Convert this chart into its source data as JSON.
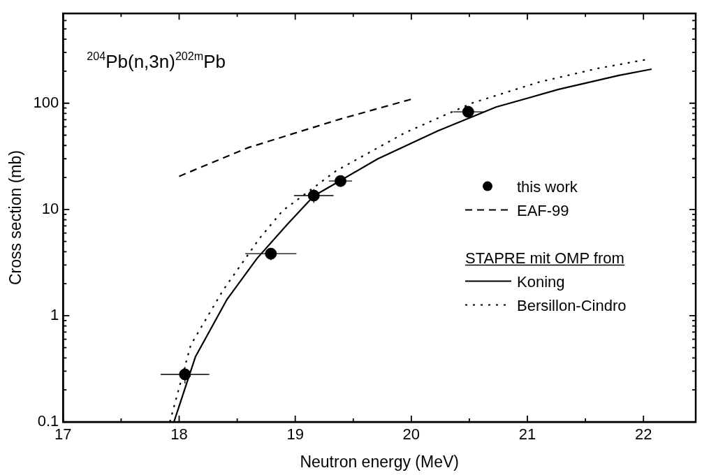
{
  "chart_data": {
    "type": "line",
    "title": "$^{204}$Pb(n,3n)$^{202m}$Pb",
    "xlabel": "Neutron energy (MeV)",
    "ylabel": "Cross section (mb)",
    "legend_title": "STAPRE mit OMP from",
    "log": "y",
    "grid": false,
    "legend": "right",
    "xlim": [
      17,
      22.45
    ],
    "ylim": [
      0.1,
      700
    ],
    "xticks": [
      17,
      {
        "value": 17.5,
        "label": null
      },
      18,
      {
        "value": 18.5,
        "label": null
      },
      19,
      {
        "value": 19.5,
        "label": null
      },
      20,
      {
        "value": 20.5,
        "label": null
      },
      21,
      {
        "value": 21.5,
        "label": null
      },
      22
    ],
    "yticks": [
      {
        "value": 0.1,
        "label": "0.1"
      },
      {
        "value": 0.2,
        "label": null
      },
      {
        "value": 0.3,
        "label": null
      },
      {
        "value": 0.4,
        "label": null
      },
      {
        "value": 0.5,
        "label": null
      },
      {
        "value": 0.6,
        "label": null
      },
      {
        "value": 0.7,
        "label": null
      },
      {
        "value": 0.8,
        "label": null
      },
      {
        "value": 0.9,
        "label": null
      },
      1,
      {
        "value": 2,
        "label": null
      },
      {
        "value": 3,
        "label": null
      },
      {
        "value": 4,
        "label": null
      },
      {
        "value": 5,
        "label": null
      },
      {
        "value": 6,
        "label": null
      },
      {
        "value": 7,
        "label": null
      },
      {
        "value": 8,
        "label": null
      },
      {
        "value": 9,
        "label": null
      },
      10,
      {
        "value": 20,
        "label": null
      },
      {
        "value": 30,
        "label": null
      },
      {
        "value": 40,
        "label": null
      },
      {
        "value": 50,
        "label": null
      },
      {
        "value": 60,
        "label": null
      },
      {
        "value": 70,
        "label": null
      },
      {
        "value": 80,
        "label": null
      },
      {
        "value": 90,
        "label": null
      },
      100,
      {
        "value": 200,
        "label": null
      },
      {
        "value": 300,
        "label": null
      },
      {
        "value": 400,
        "label": null
      },
      {
        "value": 500,
        "label": null
      },
      {
        "value": 600,
        "label": null
      },
      {
        "value": 700,
        "label": null
      }
    ],
    "series": [
      {
        "name": "this work",
        "type": "scatter",
        "marker": "circle",
        "color": "#000000",
        "x": [
          18.05,
          18.79,
          19.16,
          19.39,
          20.49
        ],
        "values": [
          0.28,
          3.83,
          13.5,
          18.5,
          83
        ],
        "errors": [
          0.05,
          0.5,
          2,
          2,
          8
        ],
        "xerrors": [
          0.21,
          0.22,
          0.17,
          0.1,
          0.13
        ]
      },
      {
        "name": "EAF-99",
        "line_style": "dashed",
        "color": "#000000",
        "x": [
          18.0,
          18.59,
          18.99,
          19.39,
          20.0
        ],
        "values": [
          20.5,
          38,
          52,
          71,
          109
        ]
      },
      {
        "name": "Koning",
        "line_style": "solid",
        "color": "#000000",
        "x": [
          17.955,
          18.14,
          18.41,
          18.67,
          18.93,
          19.16,
          19.4,
          19.71,
          20.23,
          20.73,
          21.27,
          21.79,
          22.07
        ],
        "values": [
          0.1,
          0.41,
          1.41,
          3.45,
          7.2,
          13.4,
          19,
          29.9,
          55,
          92,
          135,
          183,
          209
        ]
      },
      {
        "name": "Bersillon-Cindro",
        "line_style": "dotted",
        "color": "#000000",
        "x": [
          17.92,
          18.1,
          18.38,
          18.59,
          18.69,
          18.89,
          19.35,
          19.41,
          19.95,
          20.52,
          21.1,
          21.61,
          22.03
        ],
        "values": [
          0.1,
          0.53,
          1.75,
          3.7,
          5.3,
          9.7,
          23,
          25,
          53,
          100,
          158,
          213,
          258
        ]
      }
    ]
  }
}
